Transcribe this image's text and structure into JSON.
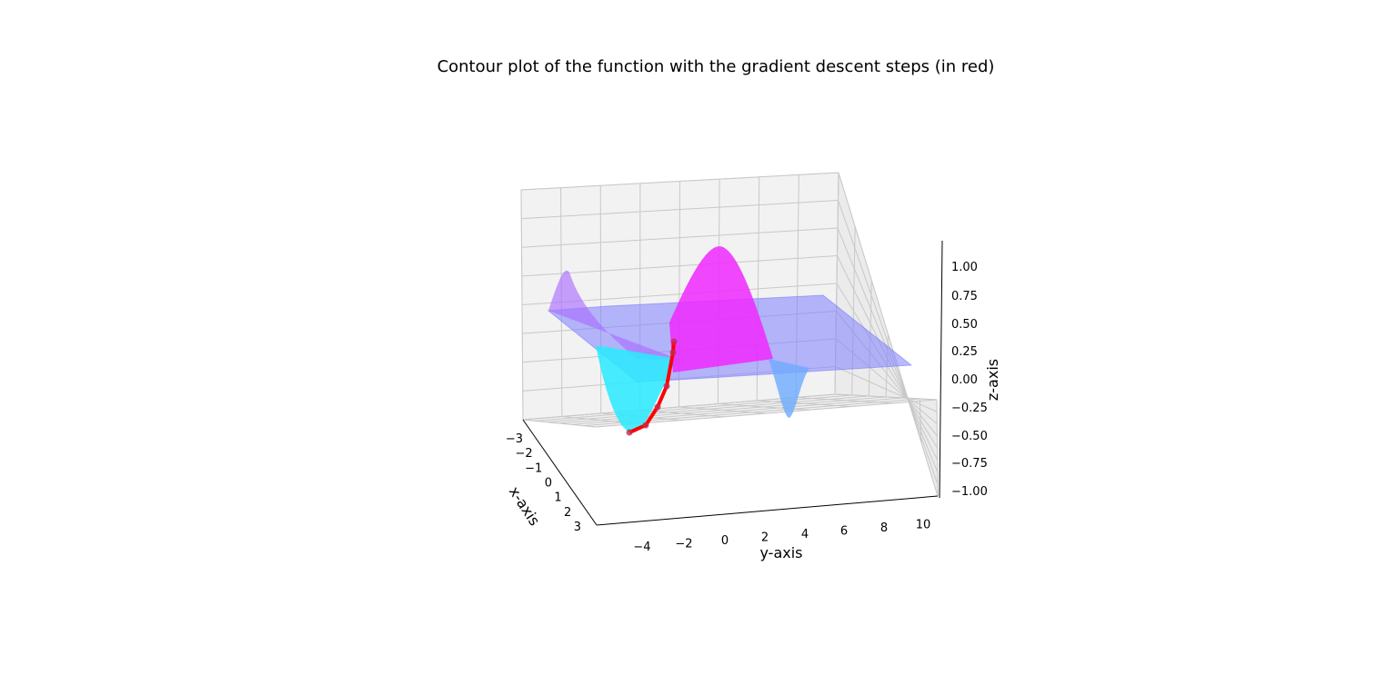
{
  "chart_data": {
    "type": "surface",
    "title": "Contour plot of the function with the gradient descent steps (in red)",
    "xlabel": "x-axis",
    "ylabel": "y-axis",
    "zlabel": "z-axis",
    "x_ticks": [
      "−3",
      "−2",
      "−1",
      "0",
      "1",
      "2",
      "3"
    ],
    "y_ticks": [
      "−4",
      "−2",
      "0",
      "2",
      "4",
      "6",
      "8",
      "10"
    ],
    "z_ticks": [
      "1.00",
      "0.75",
      "0.50",
      "0.25",
      "0.00",
      "−0.25",
      "−0.50",
      "−0.75",
      "−1.00"
    ],
    "xlim": [
      -3,
      3
    ],
    "ylim": [
      -5,
      11
    ],
    "zlim": [
      -1,
      1
    ],
    "grid": true,
    "surface_colormap": "cool",
    "surface_alpha": 0.5,
    "series": [
      {
        "name": "gradient descent steps",
        "color": "#ff0000",
        "points": [
          {
            "x": 0.0,
            "y": 0.0,
            "z": 0.12
          },
          {
            "x": 0.0,
            "y": 0.0,
            "z": 0.05
          },
          {
            "x": -0.2,
            "y": -1.0,
            "z": -0.4
          },
          {
            "x": -0.3,
            "y": -1.5,
            "z": -0.7
          },
          {
            "x": -0.3,
            "y": -2.0,
            "z": -0.95
          },
          {
            "x": -0.3,
            "y": -2.4,
            "z": -1.0
          }
        ]
      }
    ],
    "surface_features": [
      {
        "name": "peak",
        "x": 0.0,
        "y": 1.5,
        "z": 1.0,
        "color": "#ff00ff"
      },
      {
        "name": "trough",
        "x": 0.0,
        "y": -3.0,
        "z": -1.0,
        "color": "#00ffff"
      },
      {
        "name": "small-peak",
        "x": -3.0,
        "y": -4.5,
        "z": 0.4,
        "color": "#a47bff"
      },
      {
        "name": "small-trough",
        "x": 3.0,
        "y": 6.0,
        "z": -0.3,
        "color": "#66aaff"
      }
    ]
  }
}
